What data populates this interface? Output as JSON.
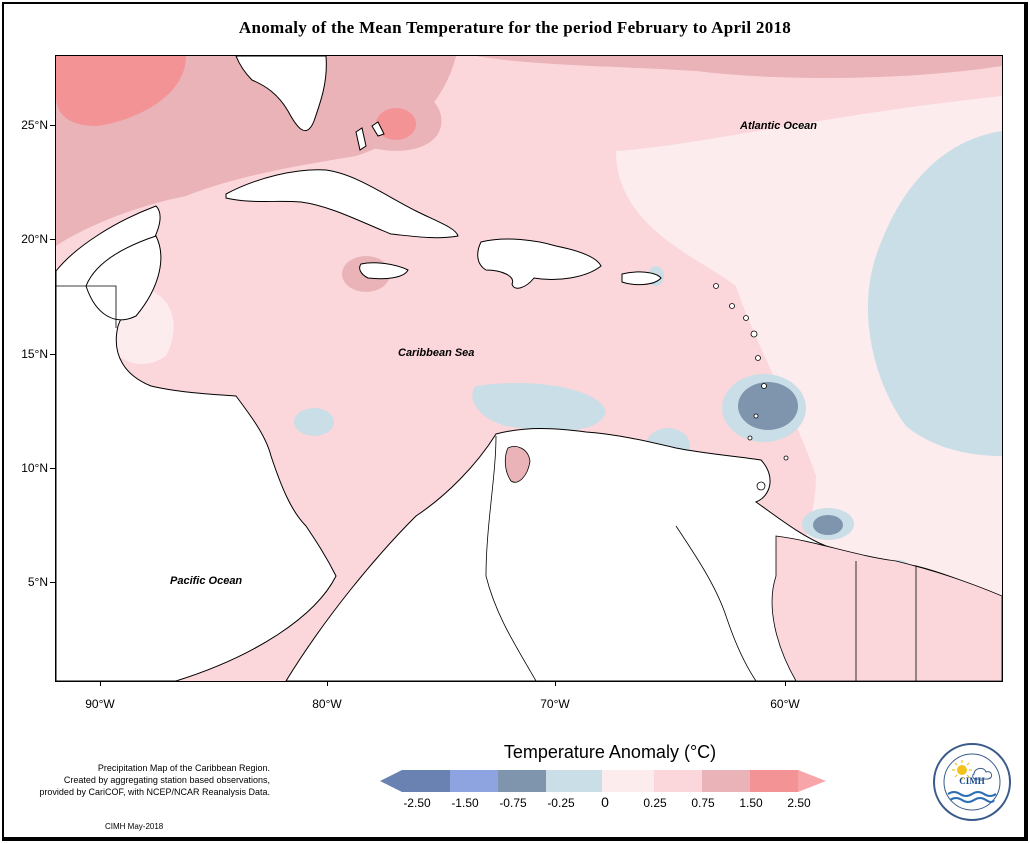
{
  "title": "Anomaly of the Mean Temperature for the period February to April 2018",
  "map": {
    "ocean_labels": {
      "atlantic": "Atlantic Ocean",
      "caribbean": "Caribbean Sea",
      "pacific": "Pacific Ocean"
    },
    "lat_labels": [
      "25°N",
      "20°N",
      "15°N",
      "10°N",
      "5°N"
    ],
    "lon_labels": [
      "90°W",
      "80°W",
      "70°W",
      "60°W"
    ],
    "colors": {
      "lt_neg_250": "#6a82b2",
      "neg_250_150": "#8ea4e0",
      "neg_150_075": "#a9bff2",
      "neg_075_025": "#7e95ad",
      "neg_025_0": "#c9dee6",
      "pos_0_025": "#fdecee",
      "pos_025_075": "#fbd7dc",
      "pos_075_150": "#e9b3b8",
      "pos_150_250": "#f49396",
      "gt_250": "#f7a5a8"
    }
  },
  "legend": {
    "title": "Temperature Anomaly (°C)",
    "breaks": [
      "-2.50",
      "-1.50",
      "-0.75",
      "-0.25",
      "0",
      "0.25",
      "0.75",
      "1.50",
      "2.50"
    ]
  },
  "notes": {
    "description": [
      "Precipitation Map of the Caribbean Region.",
      "Created by aggregating station based observations,",
      "provided by CariCOF, with NCEP/NCAR Reanalysis Data."
    ],
    "credit": "CIMH May-2018",
    "logo_text": "CIMH"
  }
}
